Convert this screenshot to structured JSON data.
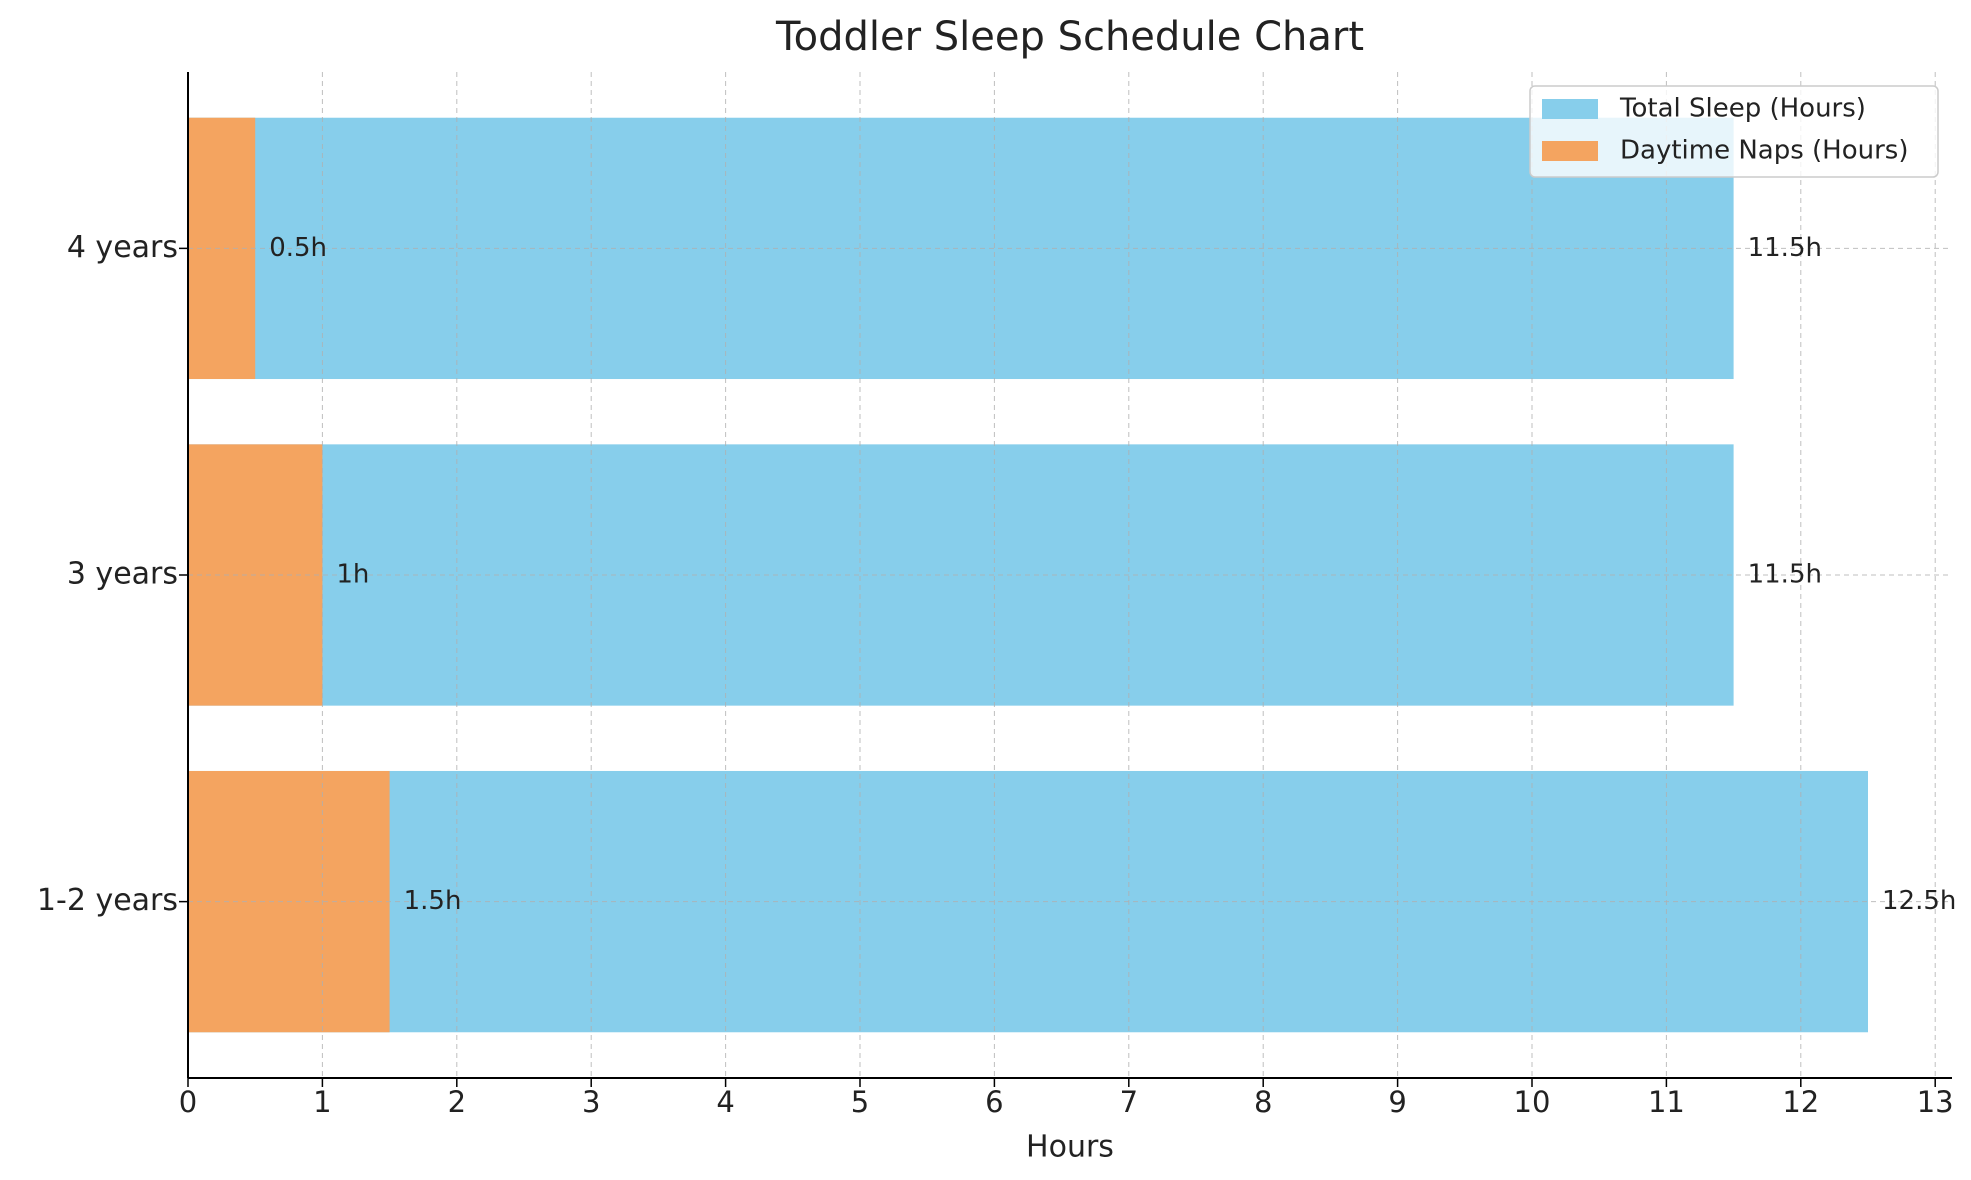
{
  "chart_data": {
    "type": "bar",
    "orientation": "horizontal",
    "title": "Toddler Sleep Schedule Chart",
    "xlabel": "Hours",
    "categories": [
      "1-2 years",
      "3 years",
      "4 years"
    ],
    "series": [
      {
        "name": "Total Sleep (Hours)",
        "color": "#87ceeb",
        "label_color": "#0000ff",
        "values": [
          12.5,
          11.5,
          11.5
        ],
        "value_labels": [
          "12.5h",
          "11.5h",
          "11.5h"
        ]
      },
      {
        "name": "Daytime Naps (Hours)",
        "color": "#f4a460",
        "label_color": "#ff8c00",
        "values": [
          1.5,
          1,
          0.5
        ],
        "value_labels": [
          "1.5h",
          "1h",
          "0.5h"
        ]
      }
    ],
    "xlim": [
      0,
      13.125
    ],
    "xticks": [
      0,
      1,
      2,
      3,
      4,
      5,
      6,
      7,
      8,
      9,
      10,
      11,
      12,
      13
    ],
    "grid": true,
    "legend": "upper right"
  }
}
